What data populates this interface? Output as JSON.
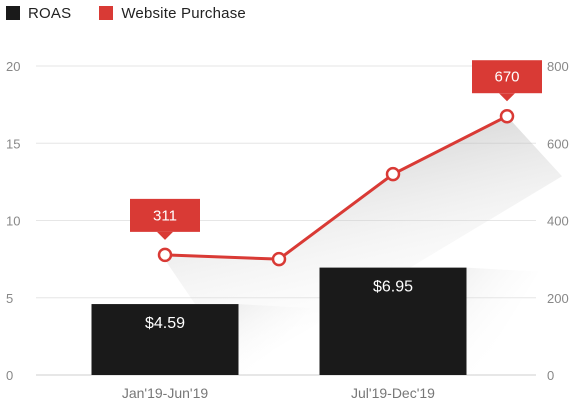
{
  "legend": [
    {
      "label": "ROAS",
      "color": "#1a1a1a"
    },
    {
      "label": "Website Purchase",
      "color": "#d93a35"
    }
  ],
  "chart_data": {
    "type": "bar",
    "categories": [
      "Jan'19-Jun'19",
      "Jul'19-Dec'19"
    ],
    "series": [
      {
        "name": "ROAS",
        "type": "bar",
        "axis": "left",
        "values": [
          4.59,
          6.95
        ],
        "labels": [
          "$4.59",
          "$6.95"
        ],
        "color": "#1a1a1a"
      },
      {
        "name": "Website Purchase",
        "type": "line",
        "axis": "right",
        "x": [
          0,
          0.5,
          1,
          1.5
        ],
        "values": [
          311,
          300,
          520,
          670
        ],
        "color": "#d93a35",
        "callouts": [
          {
            "index": 0,
            "label": "311"
          },
          {
            "index": 3,
            "label": "670"
          }
        ]
      }
    ],
    "y_left": {
      "min": 0,
      "max": 20,
      "ticks": [
        0,
        5,
        10,
        15,
        20
      ]
    },
    "y_right": {
      "min": 0,
      "max": 800,
      "ticks": [
        0,
        200,
        400,
        600,
        800
      ]
    },
    "grid": true,
    "legend_position": "top-left"
  }
}
